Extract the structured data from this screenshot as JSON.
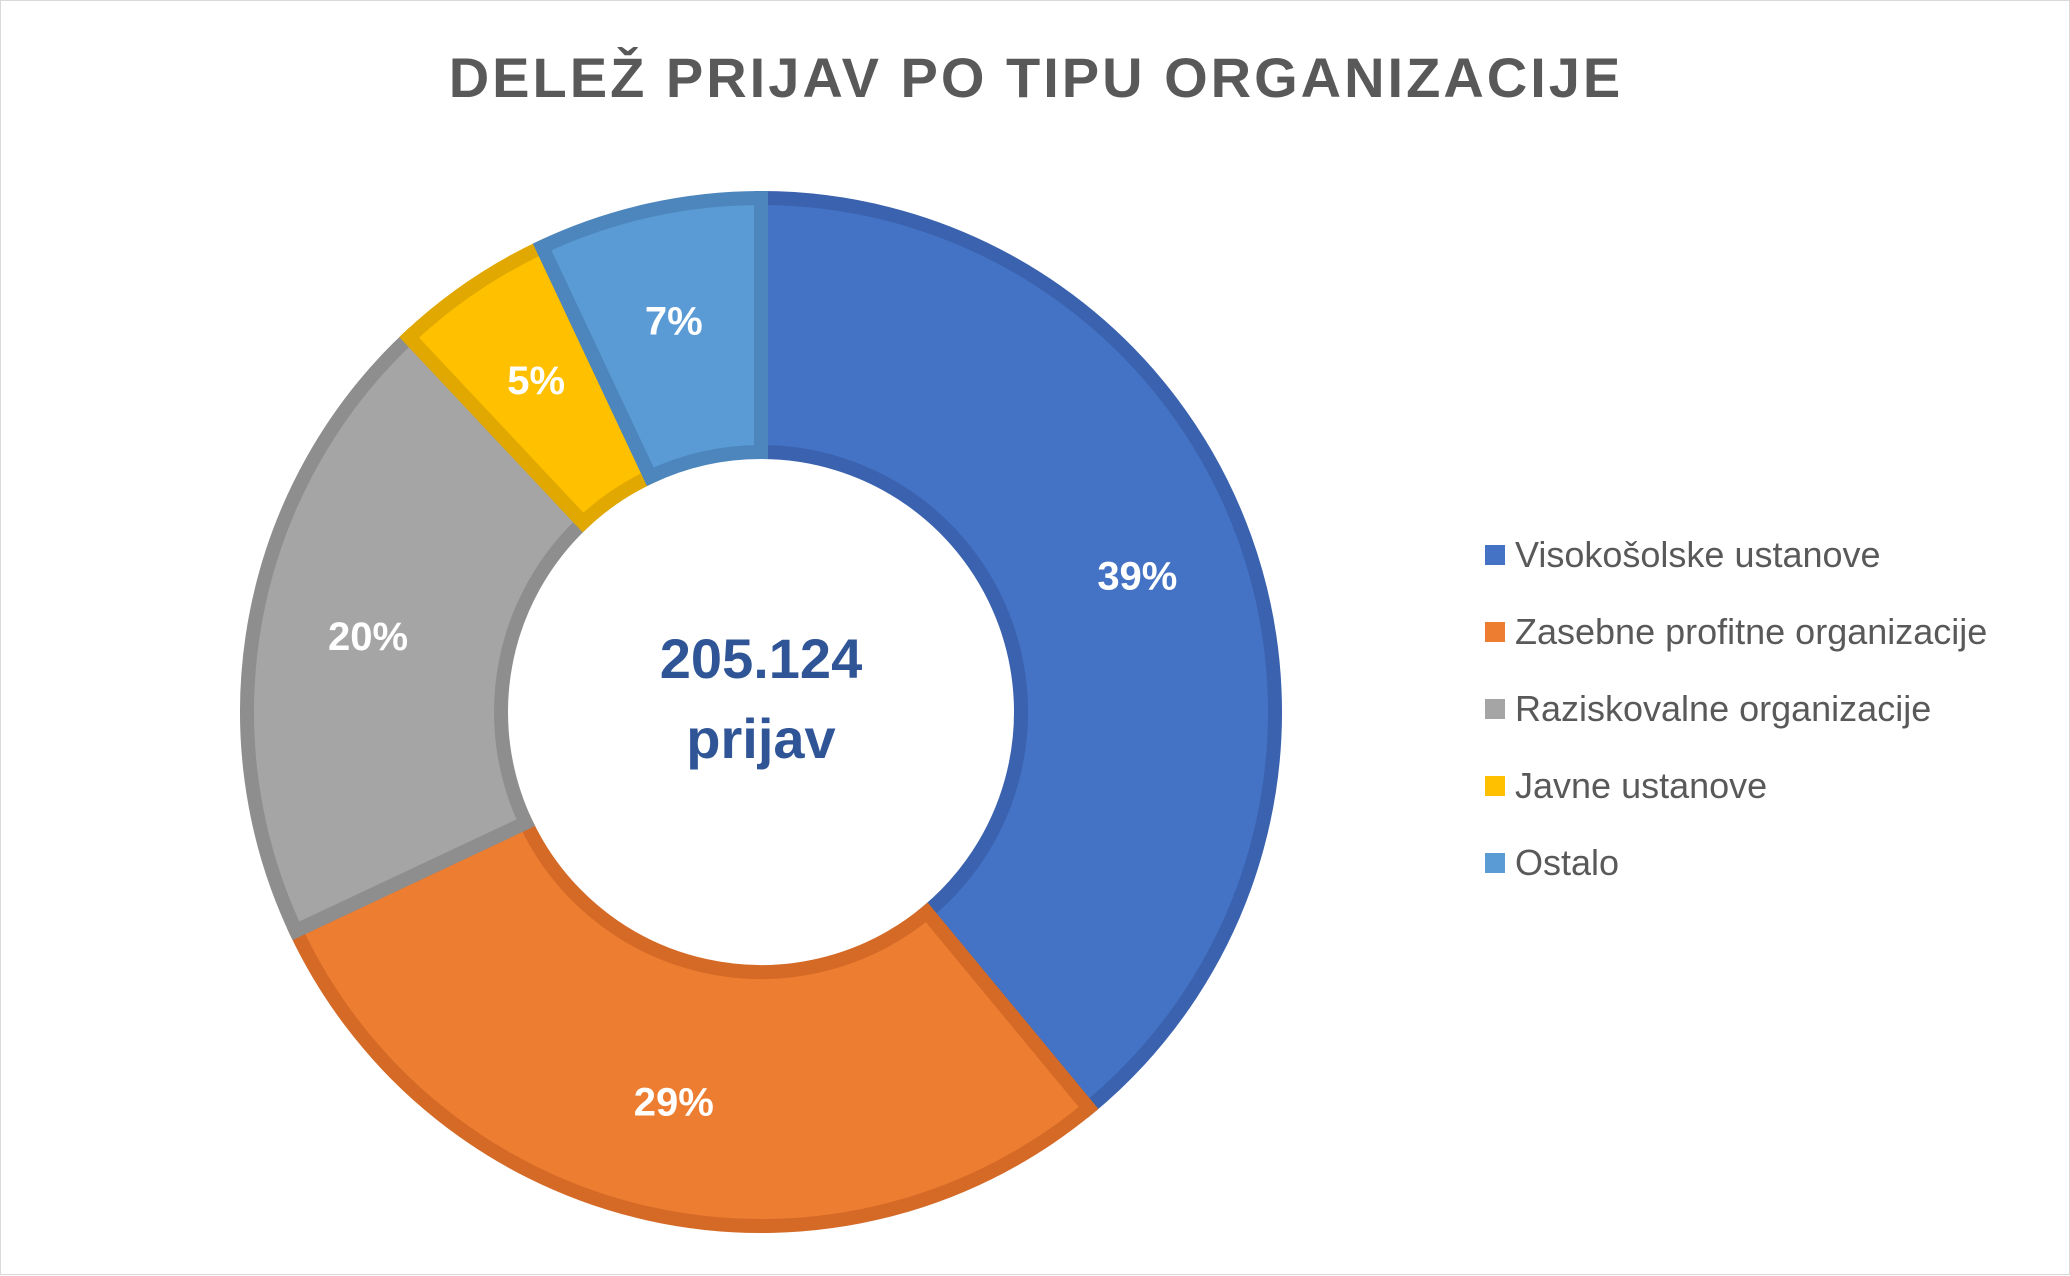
{
  "chart_data": {
    "type": "pie",
    "variant": "donut",
    "title": "DELEŽ PRIJAV PO TIPU ORGANIZACIJE",
    "center_label": {
      "value": "205.124",
      "unit": "prijav",
      "color": "#2F5597"
    },
    "legend_position": "right",
    "slices": [
      {
        "name": "Visokošolske ustanove",
        "value": 39,
        "label": "39%",
        "color": "#4472C4",
        "border": "#3A62AE"
      },
      {
        "name": "Zasebne profitne organizacije",
        "value": 29,
        "label": "29%",
        "color": "#ED7D31",
        "border": "#D46A26"
      },
      {
        "name": "Raziskovalne organizacije",
        "value": 20,
        "label": "20%",
        "color": "#A5A5A5",
        "border": "#8E8E8E"
      },
      {
        "name": "Javne ustanove",
        "value": 5,
        "label": "5%",
        "color": "#FFC000",
        "border": "#E0A800"
      },
      {
        "name": "Ostalo",
        "value": 7,
        "label": "7%",
        "color": "#5B9BD5",
        "border": "#4C86BC"
      }
    ]
  }
}
